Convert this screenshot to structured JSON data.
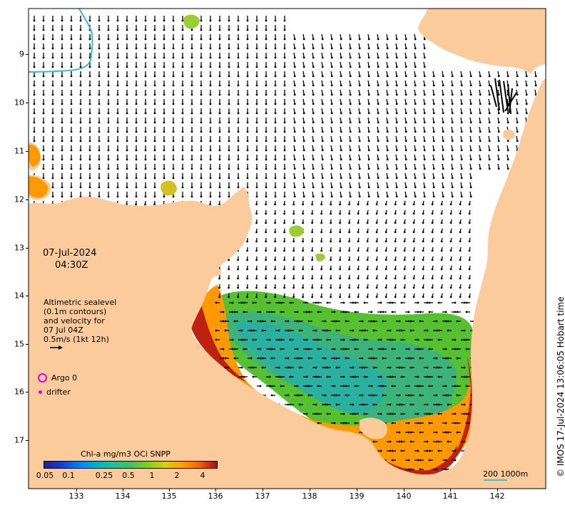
{
  "map": {
    "date": "07-Jul-2024",
    "time": "04:30Z",
    "legend_lines": [
      "Altimetric sealevel",
      "(0.1m contours)",
      "and velocity for",
      "07 Jul 04Z",
      "0.5m/s (1kt 12h)"
    ],
    "argo_label": "Argo 0",
    "drifter_label": "drifter",
    "colorbar_title": "Chl-a mg/m3 OCi SNPP",
    "colorbar_ticks": [
      "0.05",
      "0.1",
      "0.25",
      "0.5",
      "1",
      "2",
      "4"
    ],
    "scale_label": "200  1000m",
    "credit": "© IMOS 17-Jul-2024 13:06:05 Hobart time",
    "lon_labels": [
      "133",
      "134",
      "135",
      "136",
      "137",
      "138",
      "139",
      "140",
      "141",
      "142"
    ],
    "lat_labels": [
      "9",
      "10",
      "11",
      "12",
      "13",
      "14",
      "15",
      "16",
      "17"
    ],
    "colors": {
      "land": "#fbcb9b",
      "ocean": "#ffffff",
      "vector": "#000000",
      "marker": "#e400e4",
      "scale_bar": "#40c0c0",
      "chl_low": "#2ab0a0",
      "chl_mid": "#55c030",
      "chl_high": "#ff9900",
      "chl_max": "#a01010"
    }
  }
}
